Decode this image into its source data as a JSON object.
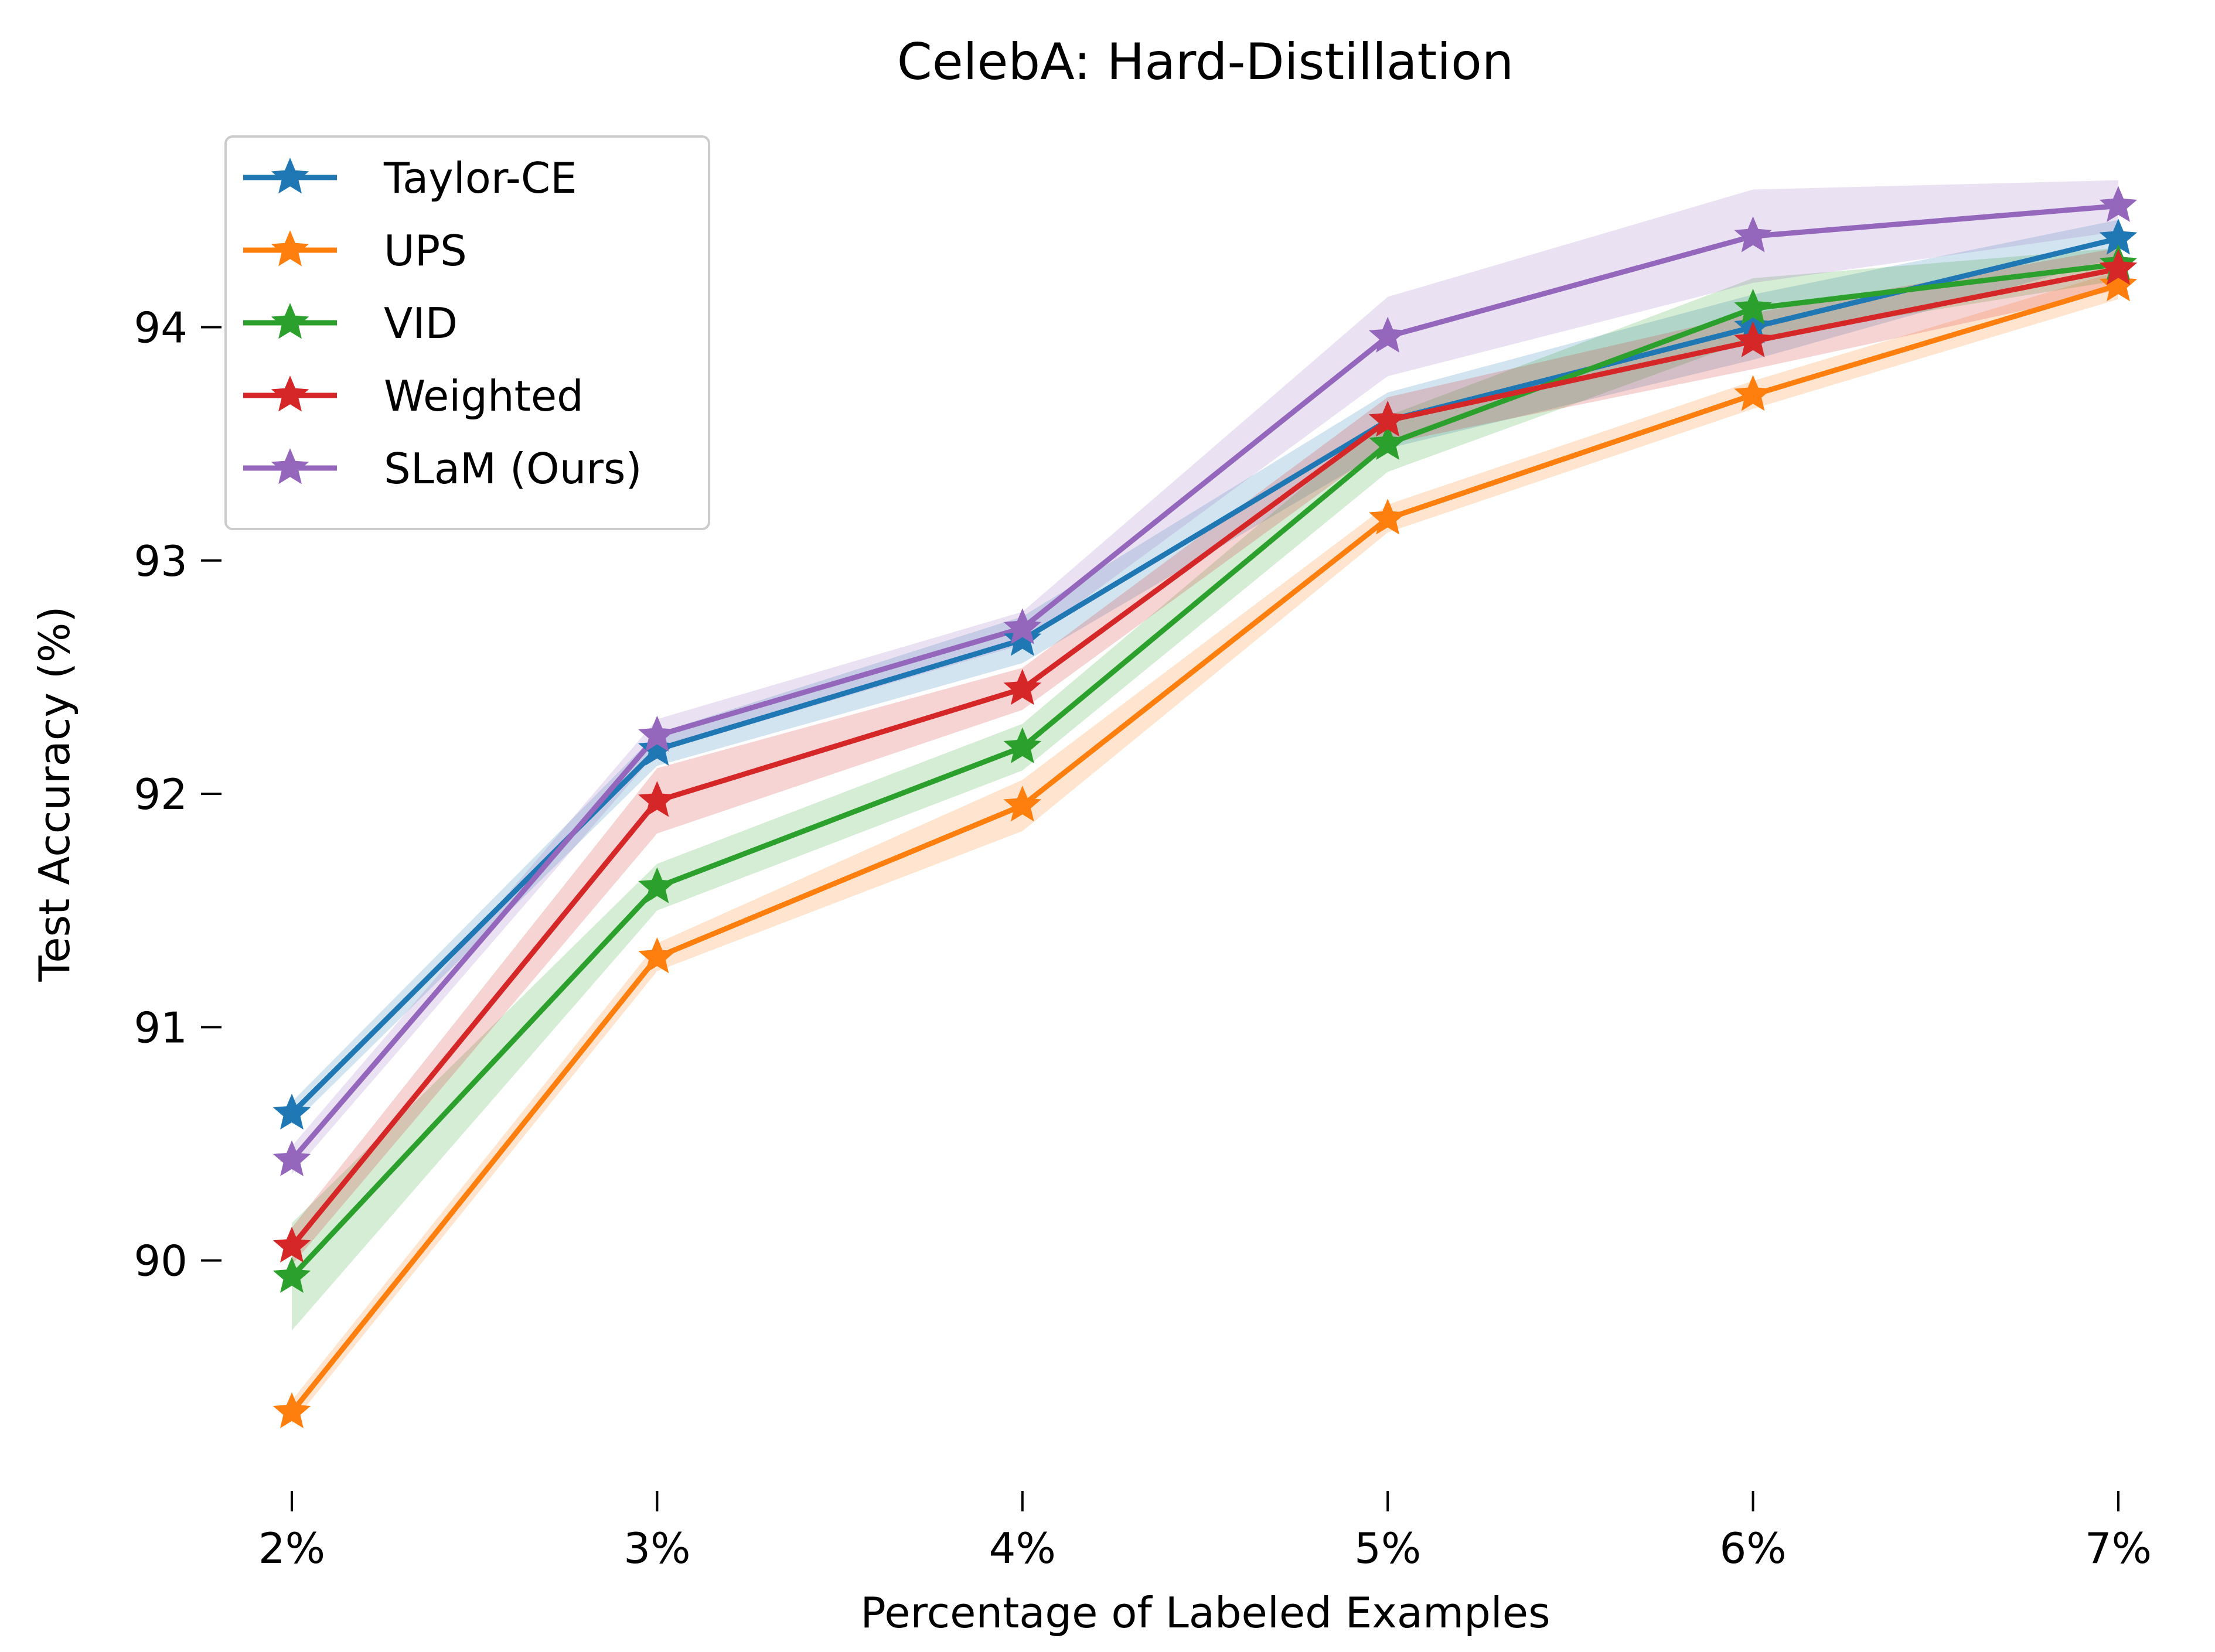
{
  "chart_data": {
    "type": "line",
    "title": "CelebA: Hard-Distillation",
    "xlabel": "Percentage of Labeled Examples",
    "ylabel": "Test Accuracy (%)",
    "categories": [
      "2%",
      "3%",
      "4%",
      "5%",
      "6%",
      "7%"
    ],
    "ylim": [
      89.05,
      94.85
    ],
    "yticks": [
      90,
      91,
      92,
      93,
      94
    ],
    "ytick_labels": [
      "90",
      "91",
      "92",
      "93",
      "94"
    ],
    "grid": false,
    "legend_position": "top-left",
    "marker": "star",
    "series": [
      {
        "name": "Taylor-CE",
        "color": "#1f77b4",
        "values": [
          90.63,
          92.19,
          92.66,
          93.6,
          94.0,
          94.38
        ],
        "lower": [
          90.58,
          92.12,
          92.56,
          93.48,
          93.86,
          94.3
        ],
        "upper": [
          90.68,
          92.26,
          92.76,
          93.72,
          94.14,
          94.46
        ]
      },
      {
        "name": "UPS",
        "color": "#ff7f0e",
        "values": [
          89.35,
          91.3,
          91.95,
          93.18,
          93.71,
          94.18
        ],
        "lower": [
          89.3,
          91.24,
          91.84,
          93.12,
          93.65,
          94.12
        ],
        "upper": [
          89.4,
          91.36,
          92.06,
          93.24,
          93.77,
          94.24
        ]
      },
      {
        "name": "VID",
        "color": "#2ca02c",
        "values": [
          89.93,
          91.6,
          92.2,
          93.5,
          94.08,
          94.27
        ],
        "lower": [
          89.7,
          91.5,
          92.1,
          93.38,
          93.95,
          94.2
        ],
        "upper": [
          90.16,
          91.7,
          92.3,
          93.62,
          94.21,
          94.34
        ]
      },
      {
        "name": "Weighted",
        "color": "#d62728",
        "values": [
          90.06,
          91.97,
          92.45,
          93.6,
          93.94,
          94.25
        ],
        "lower": [
          89.98,
          91.83,
          92.36,
          93.5,
          93.82,
          94.16
        ],
        "upper": [
          90.14,
          92.11,
          92.54,
          93.7,
          94.06,
          94.34
        ]
      },
      {
        "name": "SLaM (Ours)",
        "color": "#9467bd",
        "values": [
          90.43,
          92.25,
          92.71,
          93.96,
          94.39,
          94.52
        ],
        "lower": [
          90.37,
          92.18,
          92.64,
          93.79,
          94.19,
          94.41
        ],
        "upper": [
          90.49,
          92.32,
          92.78,
          94.13,
          94.59,
          94.63
        ]
      }
    ]
  }
}
